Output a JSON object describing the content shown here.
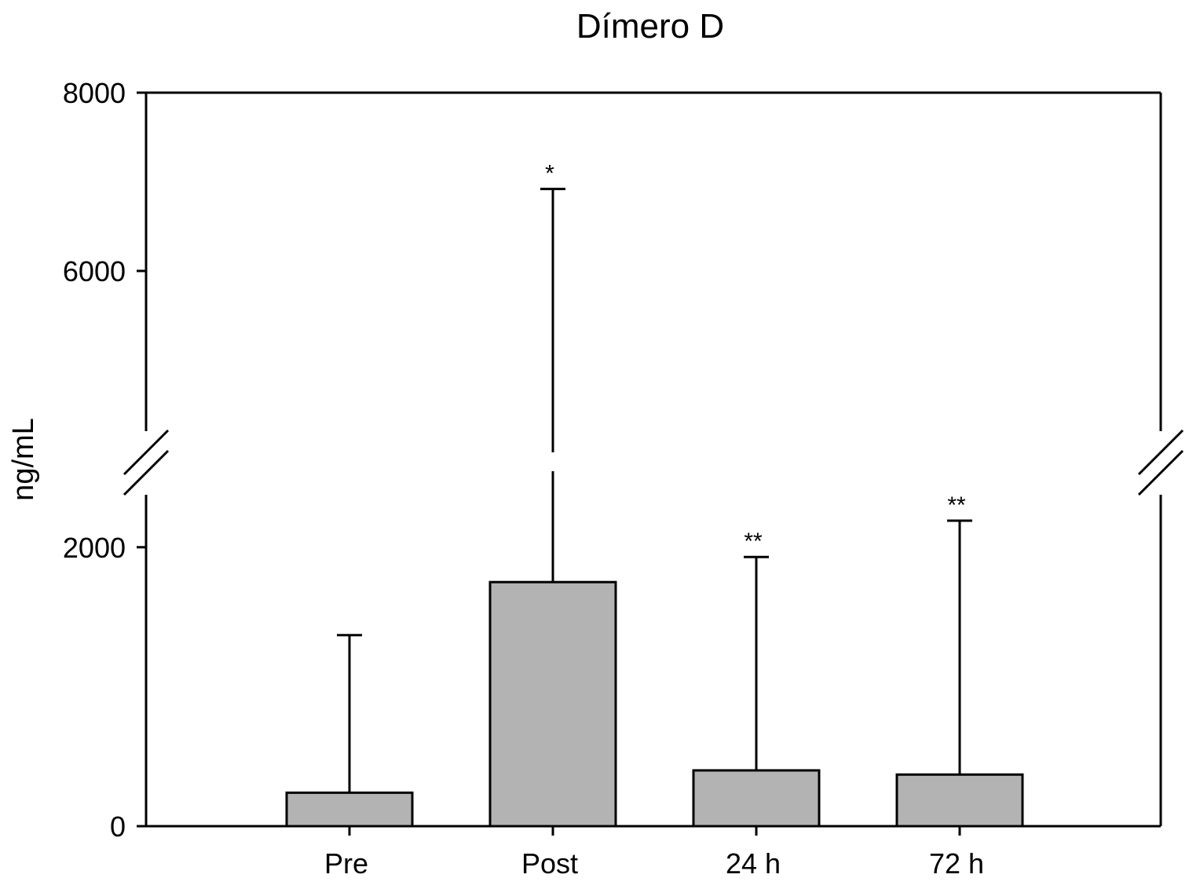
{
  "chart_data": {
    "type": "bar",
    "title": "Dímero D",
    "xlabel": "",
    "ylabel": "ng/mL",
    "categories": [
      "Pre",
      "Post",
      "24 h",
      "72 h"
    ],
    "series": [
      {
        "values": [
          240,
          1750,
          400,
          370
        ],
        "error_upper": [
          1370,
          6920,
          1930,
          2190
        ]
      }
    ],
    "annotations": [
      "",
      "*",
      "**",
      "**"
    ],
    "y_ticks": [
      0,
      2000,
      6000,
      8000
    ],
    "ylim": [
      0,
      8000
    ],
    "axis_break": [
      2500,
      4000
    ],
    "bar_color": "#b3b3b3",
    "grid": false,
    "legend": "none"
  }
}
